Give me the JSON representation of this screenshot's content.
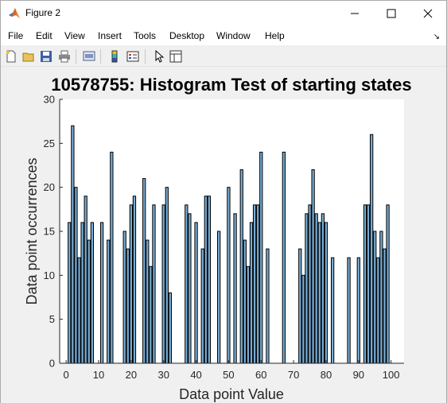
{
  "window": {
    "title": "Figure 2",
    "controls": [
      "minimize",
      "maximize",
      "close"
    ]
  },
  "menu": [
    "File",
    "Edit",
    "View",
    "Insert",
    "Tools",
    "Desktop",
    "Window",
    "Help"
  ],
  "toolbar_icons": [
    "new-figure-icon",
    "open-file-icon",
    "save-icon",
    "print-icon",
    "link-plot-icon",
    "colorbar-icon",
    "legend-icon",
    "edit-plot-icon",
    "property-editor-icon"
  ],
  "chart_data": {
    "type": "bar",
    "title": "10578755: Histogram Test of starting states",
    "xlabel": "Data point Value",
    "ylabel": "Data point occurrences",
    "xlim": [
      -2,
      104
    ],
    "ylim": [
      0,
      30
    ],
    "xticks": [
      0,
      10,
      20,
      30,
      40,
      50,
      60,
      70,
      80,
      90,
      100
    ],
    "yticks": [
      0,
      5,
      10,
      15,
      20,
      25,
      30
    ],
    "bar_color": "#77acd4",
    "x": [
      1,
      2,
      3,
      4,
      5,
      6,
      7,
      8,
      11,
      13,
      14,
      18,
      19,
      20,
      21,
      24,
      25,
      26,
      27,
      30,
      31,
      32,
      37,
      38,
      40,
      42,
      43,
      44,
      47,
      50,
      52,
      54,
      55,
      56,
      57,
      58,
      59,
      60,
      62,
      67,
      72,
      73,
      74,
      75,
      76,
      77,
      78,
      79,
      80,
      82,
      87,
      90,
      92,
      93,
      94,
      95,
      96,
      97,
      98,
      99
    ],
    "values": [
      16,
      27,
      20,
      12,
      16,
      19,
      14,
      16,
      16,
      14,
      24,
      15,
      13,
      18,
      19,
      21,
      14,
      11,
      18,
      18,
      20,
      8,
      18,
      17,
      16,
      13,
      19,
      19,
      15,
      20,
      17,
      22,
      14,
      11,
      16,
      18,
      18,
      24,
      13,
      24,
      13,
      10,
      17,
      18,
      22,
      17,
      16,
      17,
      16,
      12,
      12,
      12,
      18,
      18,
      26,
      15,
      12,
      15,
      13,
      18
    ]
  }
}
